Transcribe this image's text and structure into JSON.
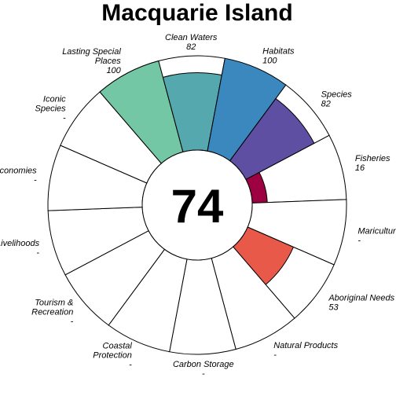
{
  "chart_data": {
    "type": "flower",
    "title": "Macquarie Island",
    "center_score": "74",
    "petals": [
      {
        "name": "Fisheries",
        "label_lines": [
          "Fisheries"
        ],
        "value_text": "16",
        "value": 16,
        "color": "#9E0142"
      },
      {
        "name": "Mariculture",
        "label_lines": [
          "Mariculture"
        ],
        "value_text": "-",
        "value": null,
        "color": "#D53E4F"
      },
      {
        "name": "Aboriginal Needs",
        "label_lines": [
          "Aboriginal Needs"
        ],
        "value_text": "53",
        "value": 53,
        "color": "#E8594A"
      },
      {
        "name": "Natural Products",
        "label_lines": [
          "Natural Products"
        ],
        "value_text": "-",
        "value": null,
        "color": "#F46D43"
      },
      {
        "name": "Carbon Storage",
        "label_lines": [
          "Carbon Storage"
        ],
        "value_text": "-",
        "value": null,
        "color": "#FDAE61"
      },
      {
        "name": "Coastal Protection",
        "label_lines": [
          "Coastal",
          "Protection"
        ],
        "value_text": "-",
        "value": null,
        "color": "#FEE08B"
      },
      {
        "name": "Tourism & Recreation",
        "label_lines": [
          "Tourism &",
          "Recreation"
        ],
        "value_text": "-",
        "value": null,
        "color": "#FFFFBF"
      },
      {
        "name": "Livelihoods",
        "label_lines": [
          "Livelihoods"
        ],
        "value_text": "-",
        "value": null,
        "color": "#E6F598"
      },
      {
        "name": "Economies",
        "label_lines": [
          "Economies"
        ],
        "value_text": "-",
        "value": null,
        "color": "#ABDDA4"
      },
      {
        "name": "Iconic Species",
        "label_lines": [
          "Iconic",
          "Species"
        ],
        "value_text": "-",
        "value": null,
        "color": "#8FD3A8"
      },
      {
        "name": "Lasting Special Places",
        "label_lines": [
          "Lasting Special",
          "Places"
        ],
        "value_text": "100",
        "value": 100,
        "color": "#74C7A4"
      },
      {
        "name": "Clean Waters",
        "label_lines": [
          "Clean Waters"
        ],
        "value_text": "82",
        "value": 82,
        "color": "#55A8AE"
      },
      {
        "name": "Habitats",
        "label_lines": [
          "Habitats"
        ],
        "value_text": "100",
        "value": 100,
        "color": "#3A88BE"
      },
      {
        "name": "Species",
        "label_lines": [
          "Species"
        ],
        "value_text": "82",
        "value": 82,
        "color": "#5E4FA2"
      }
    ],
    "ylim": [
      0,
      100
    ]
  }
}
